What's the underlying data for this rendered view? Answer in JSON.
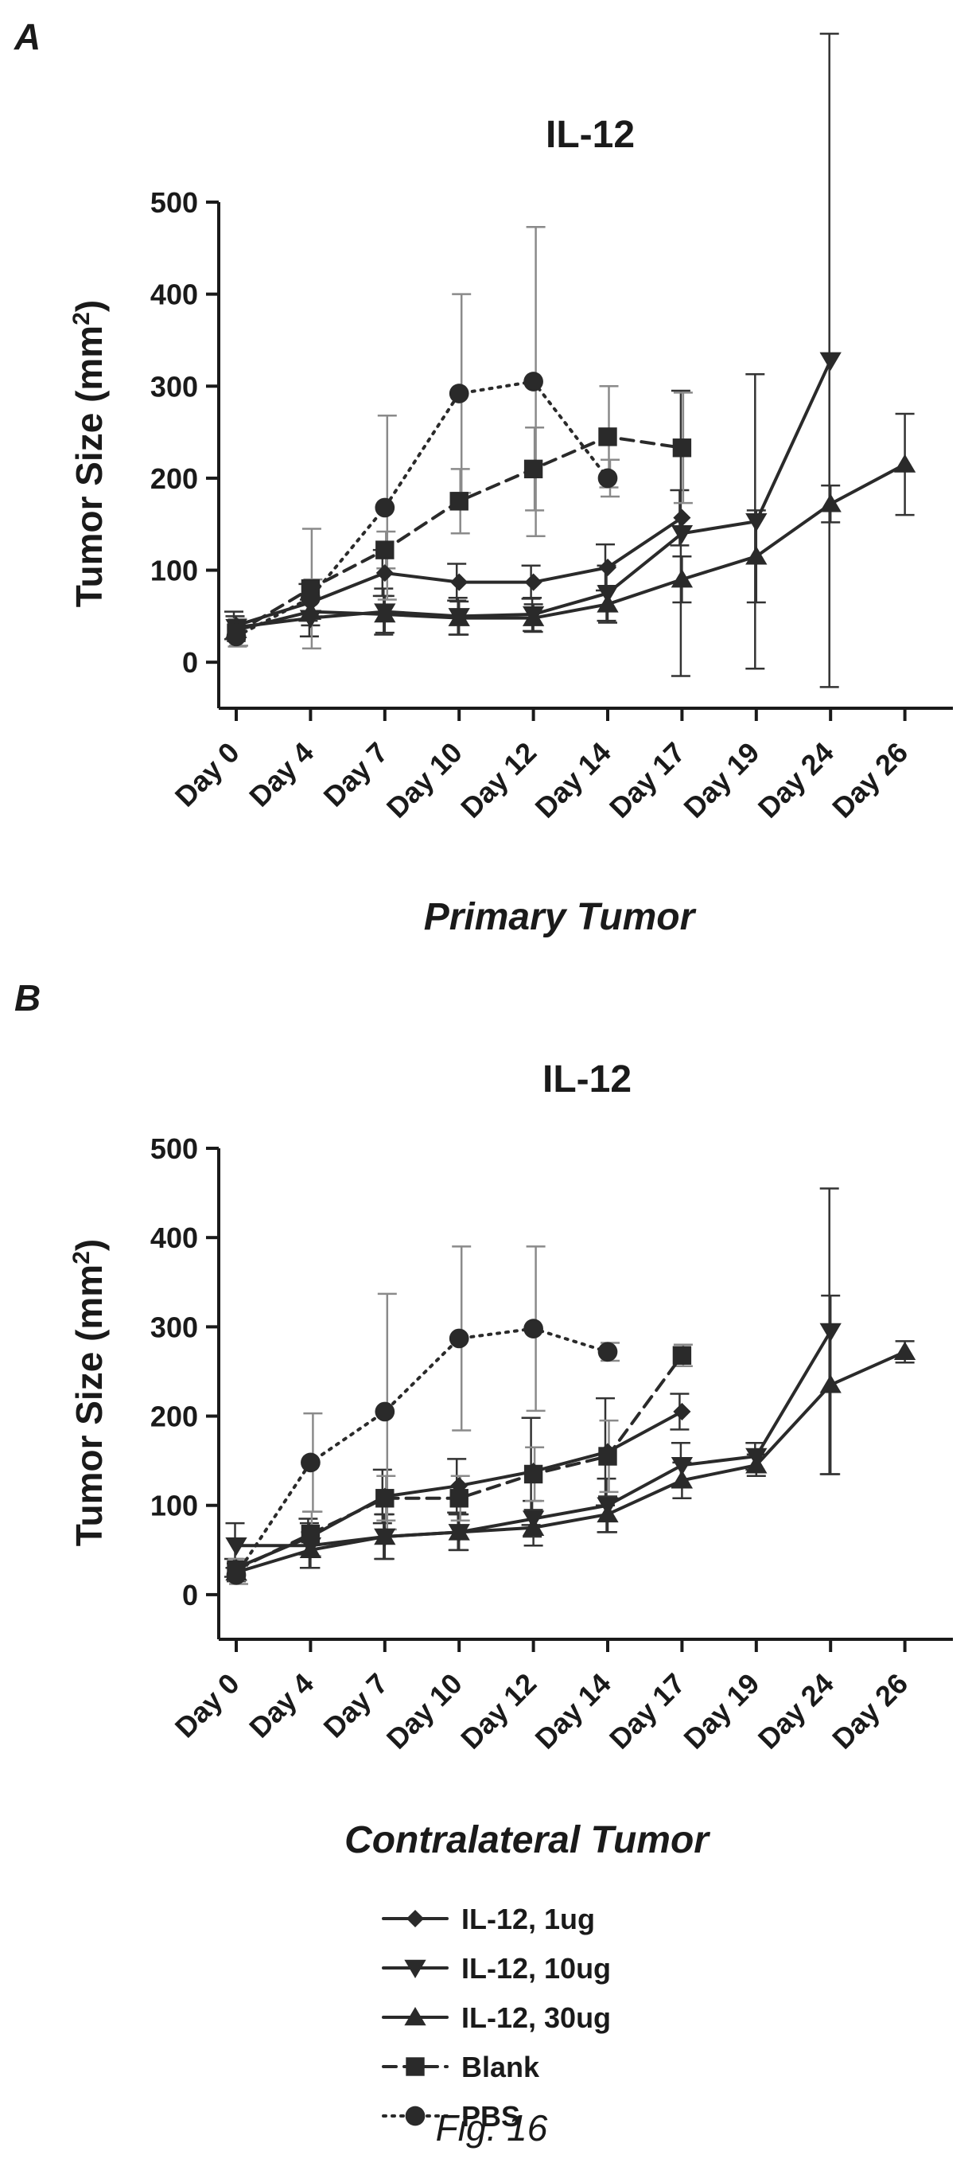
{
  "figure": {
    "caption": "Fig. 16",
    "legend": [
      {
        "label": "IL-12, 1ug",
        "marker": "diamond",
        "dash": "solid"
      },
      {
        "label": "IL-12, 10ug",
        "marker": "triangle-down",
        "dash": "solid"
      },
      {
        "label": "IL-12, 30ug",
        "marker": "triangle-up",
        "dash": "solid"
      },
      {
        "label": "Blank",
        "marker": "square",
        "dash": "dashed"
      },
      {
        "label": "PBS",
        "marker": "circle",
        "dash": "dotted"
      }
    ]
  },
  "chart_data": [
    {
      "panel": "A",
      "type": "line",
      "title": "IL-12",
      "subtitle": "Primary Tumor",
      "ylabel": "Tumor Size (mm",
      "ylabel_sup": "2",
      "ylabel_close": ")",
      "ylim": [
        -50,
        500
      ],
      "yticks": [
        0,
        100,
        200,
        300,
        400,
        500
      ],
      "categories": [
        "Day 0",
        "Day 4",
        "Day 7",
        "Day 10",
        "Day 12",
        "Day 14",
        "Day 17",
        "Day 19",
        "Day 24",
        "Day 26"
      ],
      "series": [
        {
          "name": "IL-12, 1ug",
          "marker": "diamond",
          "dash": "solid",
          "color": "#2a2a2a",
          "values": [
            40,
            65,
            97,
            87,
            87,
            103,
            157,
            null,
            null,
            null
          ],
          "errors": [
            15,
            20,
            25,
            20,
            18,
            25,
            30,
            null,
            null,
            null
          ]
        },
        {
          "name": "IL-12, 10ug",
          "marker": "triangle-down",
          "dash": "solid",
          "color": "#2a2a2a",
          "values": [
            38,
            48,
            55,
            50,
            52,
            75,
            140,
            153,
            328,
            null
          ],
          "errors": [
            12,
            20,
            25,
            20,
            18,
            30,
            155,
            160,
            355,
            null
          ]
        },
        {
          "name": "IL-12, 30ug",
          "marker": "triangle-up",
          "dash": "solid",
          "color": "#2a2a2a",
          "values": [
            35,
            55,
            52,
            48,
            48,
            63,
            90,
            115,
            172,
            215
          ],
          "errors": [
            10,
            15,
            20,
            18,
            15,
            20,
            25,
            50,
            20,
            55
          ]
        },
        {
          "name": "Blank",
          "marker": "square",
          "dash": "dashed",
          "color": "#2a2a2a",
          "values": [
            32,
            80,
            122,
            175,
            210,
            245,
            233,
            null,
            null,
            null
          ],
          "errors": [
            15,
            65,
            20,
            35,
            45,
            55,
            60,
            null,
            null,
            null
          ]
        },
        {
          "name": "PBS",
          "marker": "circle",
          "dash": "dotted",
          "color": "#2a2a2a",
          "values": [
            28,
            70,
            168,
            292,
            305,
            200,
            null,
            null,
            null,
            null
          ],
          "errors": [
            10,
            20,
            100,
            108,
            168,
            20,
            null,
            null,
            null,
            null
          ]
        }
      ]
    },
    {
      "panel": "B",
      "type": "line",
      "title": "IL-12",
      "subtitle": "Contralateral Tumor",
      "ylabel": "Tumor Size (mm",
      "ylabel_sup": "2",
      "ylabel_close": ")",
      "ylim": [
        -50,
        500
      ],
      "yticks": [
        0,
        100,
        200,
        300,
        400,
        500
      ],
      "categories": [
        "Day 0",
        "Day 4",
        "Day 7",
        "Day 10",
        "Day 12",
        "Day 14",
        "Day 17",
        "Day 19",
        "Day 24",
        "Day 26"
      ],
      "series": [
        {
          "name": "IL-12, 1ug",
          "marker": "diamond",
          "dash": "solid",
          "color": "#2a2a2a",
          "values": [
            30,
            65,
            110,
            122,
            138,
            160,
            205,
            null,
            null,
            null
          ],
          "errors": [
            10,
            20,
            30,
            30,
            60,
            60,
            20,
            null,
            null,
            null
          ]
        },
        {
          "name": "IL-12, 10ug",
          "marker": "triangle-down",
          "dash": "solid",
          "color": "#2a2a2a",
          "values": [
            55,
            55,
            65,
            70,
            85,
            100,
            145,
            155,
            295,
            null
          ],
          "errors": [
            25,
            25,
            25,
            20,
            20,
            30,
            25,
            15,
            160,
            null
          ]
        },
        {
          "name": "IL-12, 30ug",
          "marker": "triangle-up",
          "dash": "solid",
          "color": "#2a2a2a",
          "values": [
            25,
            50,
            65,
            70,
            75,
            90,
            128,
            145,
            235,
            272
          ],
          "errors": [
            10,
            20,
            25,
            20,
            20,
            20,
            20,
            12,
            100,
            12
          ]
        },
        {
          "name": "Blank",
          "marker": "square",
          "dash": "dashed",
          "color": "#2a2a2a",
          "values": [
            28,
            68,
            108,
            108,
            135,
            155,
            268,
            null,
            null,
            null
          ],
          "errors": [
            12,
            25,
            25,
            25,
            30,
            40,
            12,
            null,
            null,
            null
          ]
        },
        {
          "name": "PBS",
          "marker": "circle",
          "dash": "dotted",
          "color": "#2a2a2a",
          "values": [
            22,
            148,
            205,
            287,
            298,
            272,
            null,
            null,
            null,
            null
          ],
          "errors": [
            10,
            55,
            132,
            103,
            92,
            10,
            null,
            null,
            null,
            null
          ]
        }
      ]
    }
  ]
}
